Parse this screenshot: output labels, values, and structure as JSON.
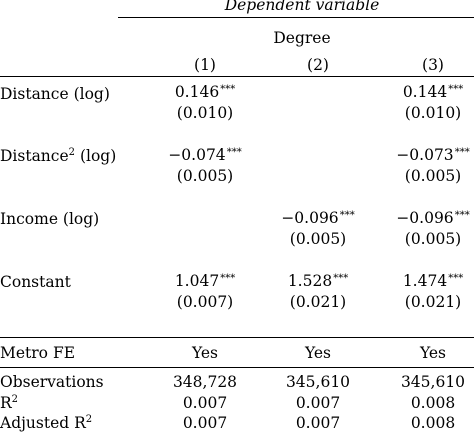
{
  "header": {
    "dependent_variable": "Dependent variable",
    "dependent_name": "Degree",
    "columns": [
      "(1)",
      "(2)",
      "(3)"
    ]
  },
  "rows": [
    {
      "label": "Distance (log)",
      "coef": [
        "0.146",
        "",
        "0.144"
      ],
      "stars": [
        "***",
        "",
        "***"
      ],
      "se": [
        "(0.010)",
        "",
        "(0.010)"
      ]
    },
    {
      "label": "Distance",
      "label_sup": "2",
      "label_tail": "(log)",
      "coef": [
        "−0.074",
        "",
        "−0.073"
      ],
      "stars": [
        "***",
        "",
        "***"
      ],
      "se": [
        "(0.005)",
        "",
        "(0.005)"
      ]
    },
    {
      "label": "Income (log)",
      "coef": [
        "",
        "−0.096",
        "−0.096"
      ],
      "stars": [
        "",
        "***",
        "***"
      ],
      "se": [
        "",
        "(0.005)",
        "(0.005)"
      ]
    },
    {
      "label": "Constant",
      "coef": [
        "1.047",
        "1.528",
        "1.474"
      ],
      "stars": [
        "***",
        "***",
        "***"
      ],
      "se": [
        "(0.007)",
        "(0.021)",
        "(0.021)"
      ]
    }
  ],
  "metro_fe": {
    "label": "Metro FE",
    "values": [
      "Yes",
      "Yes",
      "Yes"
    ]
  },
  "stats": [
    {
      "label": "Observations",
      "values": [
        "348,728",
        "345,610",
        "345,610"
      ]
    },
    {
      "label": "R",
      "label_sup": "2",
      "values": [
        "0.007",
        "0.007",
        "0.008"
      ]
    },
    {
      "label": "Adjusted R",
      "label_sup": "2",
      "values": [
        "0.007",
        "0.007",
        "0.008"
      ]
    }
  ]
}
